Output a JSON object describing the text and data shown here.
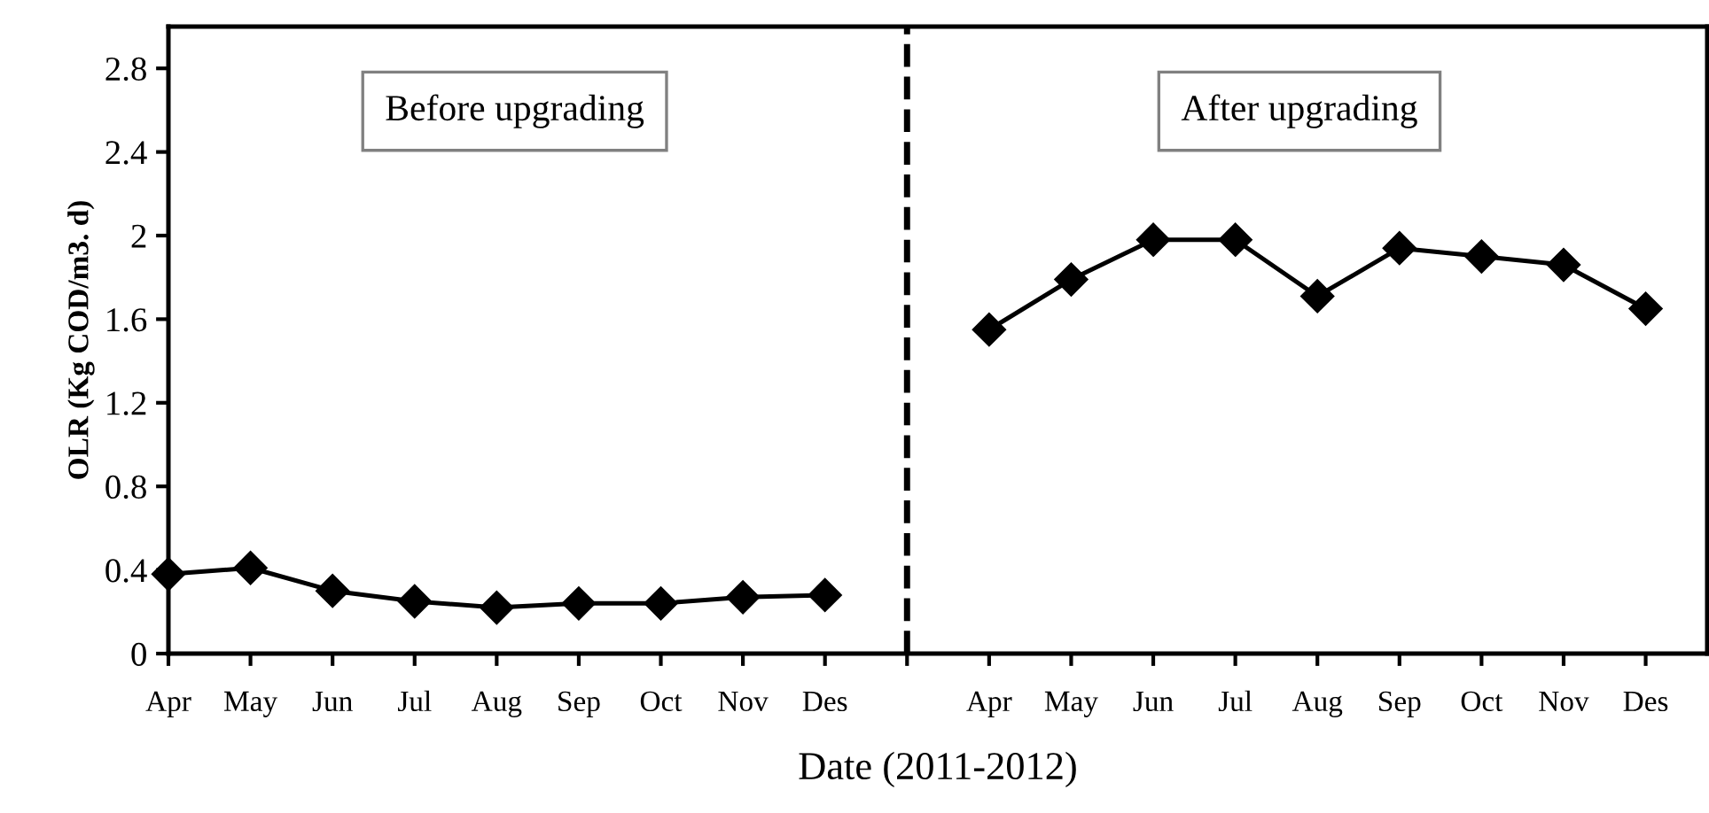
{
  "chart_data": {
    "type": "line",
    "xlabel": "Date (2011-2012)",
    "ylabel": "OLR (Kg COD/m3. d)",
    "categories": [
      "Apr",
      "May",
      "Jun",
      "Jul",
      "Aug",
      "Sep",
      "Oct",
      "Nov",
      "Des",
      null,
      "Apr",
      "May",
      "Jun",
      "Jul",
      "Aug",
      "Sep",
      "Oct",
      "Nov",
      "Des"
    ],
    "series": [
      {
        "color": "#000000",
        "values": [
          0.38,
          0.41,
          0.3,
          0.25,
          0.22,
          0.24,
          0.24,
          0.27,
          0.28,
          null,
          1.55,
          1.79,
          1.98,
          1.98,
          1.71,
          1.94,
          1.9,
          1.86,
          1.65
        ]
      }
    ],
    "marker": "diamond",
    "line_style": "solid",
    "ylim": [
      0,
      3
    ],
    "yticks": [
      0,
      0.4,
      0.8,
      1.2,
      1.6,
      2,
      2.4,
      2.8
    ],
    "annotations": [
      "Before upgrading",
      "After upgrading"
    ]
  }
}
